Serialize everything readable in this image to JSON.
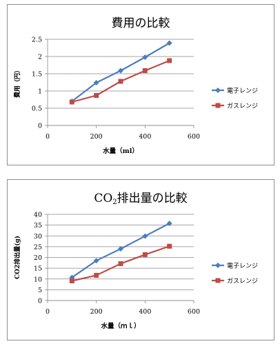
{
  "chart_data": [
    {
      "type": "line",
      "title": "費用の比較",
      "title_sub": "",
      "xlabel": "水量（ml）",
      "ylabel": "費用（円）",
      "xlim": [
        0,
        600
      ],
      "ylim": [
        0,
        2.5
      ],
      "x_ticks": [
        0,
        200,
        400,
        600
      ],
      "y_ticks": [
        0,
        0.5,
        1,
        1.5,
        2,
        2.5
      ],
      "x_tick_labels": [
        "0",
        "200",
        "400",
        "600"
      ],
      "y_tick_labels": [
        "0",
        "0.5",
        "1",
        "1.5",
        "2",
        "2.5"
      ],
      "grid": "horizontal",
      "legend_position": "right",
      "x": [
        100,
        200,
        300,
        400,
        500
      ],
      "series": [
        {
          "name": "電子レンジ",
          "values": [
            0.7,
            1.24,
            1.59,
            1.98,
            2.39
          ],
          "color": "#4a7ebb",
          "marker": "diamond"
        },
        {
          "name": "ガスレンジ",
          "values": [
            0.68,
            0.87,
            1.28,
            1.59,
            1.88
          ],
          "color": "#be4b48",
          "marker": "square"
        }
      ]
    },
    {
      "type": "line",
      "title": "CO",
      "title_sub": "2",
      "title_suffix": "排出量の比較",
      "xlabel": "水量（ｍｌ）",
      "ylabel": "CO2排出量(g)",
      "xlim": [
        0,
        600
      ],
      "ylim": [
        0,
        40
      ],
      "x_ticks": [
        0,
        200,
        400,
        600
      ],
      "y_ticks": [
        0,
        5,
        10,
        15,
        20,
        25,
        30,
        35,
        40
      ],
      "x_tick_labels": [
        "0",
        "200",
        "400",
        "600"
      ],
      "y_tick_labels": [
        "0",
        "5",
        "10",
        "15",
        "20",
        "25",
        "30",
        "35",
        "40"
      ],
      "grid": "horizontal",
      "legend_position": "right",
      "x": [
        100,
        200,
        300,
        400,
        500
      ],
      "series": [
        {
          "name": "電子レンジ",
          "values": [
            10.7,
            18.5,
            24.0,
            29.9,
            35.8
          ],
          "color": "#4a7ebb",
          "marker": "diamond"
        },
        {
          "name": "ガスレンジ",
          "values": [
            9.1,
            11.7,
            17.1,
            21.3,
            25.2
          ],
          "color": "#be4b48",
          "marker": "square"
        }
      ]
    }
  ]
}
